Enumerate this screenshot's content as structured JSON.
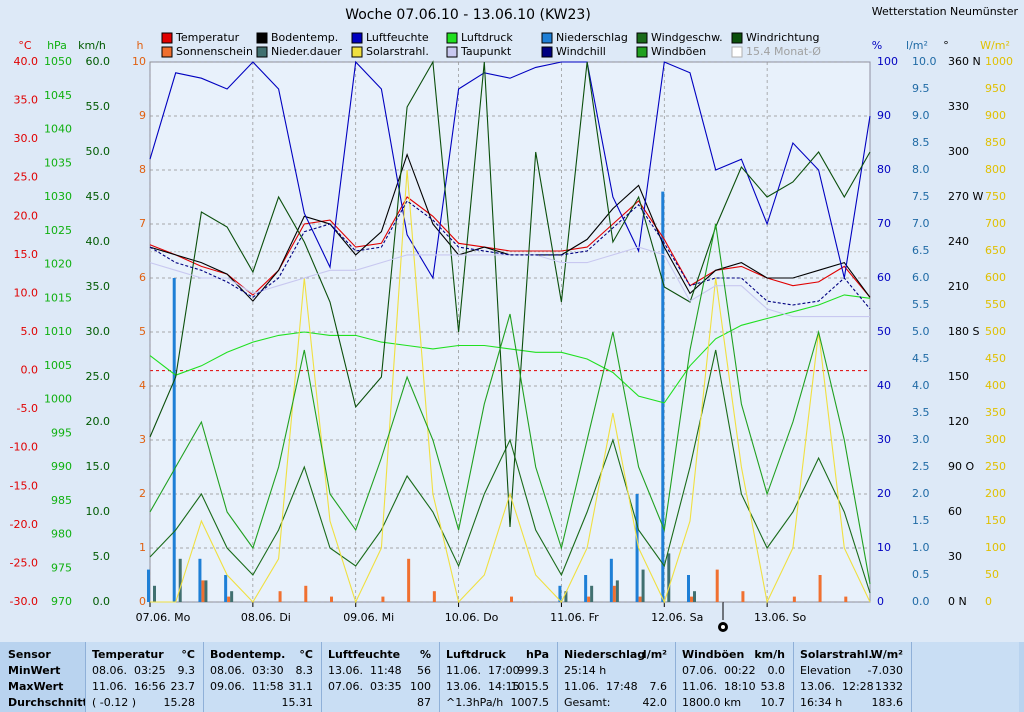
{
  "chart_data": {
    "type": "line",
    "title": "Woche 07.06.10 - 13.06.10 (KW23)",
    "station": "Wetterstation Neumünster",
    "grid": true,
    "xlim": [
      0,
      168
    ],
    "xticks": [
      {
        "value": 0,
        "label": "07.06. Mo"
      },
      {
        "value": 24,
        "label": "08.06. Di"
      },
      {
        "value": 48,
        "label": "09.06. Mi"
      },
      {
        "value": 72,
        "label": "10.06. Do"
      },
      {
        "value": 96,
        "label": "11.06. Fr"
      },
      {
        "value": 120,
        "label": "12.06. Sa"
      },
      {
        "value": 144,
        "label": "13.06. So"
      }
    ],
    "x": [
      0,
      6,
      12,
      18,
      24,
      30,
      36,
      42,
      48,
      54,
      60,
      66,
      72,
      78,
      84,
      90,
      96,
      102,
      108,
      114,
      120,
      126,
      132,
      138,
      144,
      150,
      156,
      162,
      168
    ],
    "axes": [
      {
        "id": "C",
        "unit": "°C",
        "color": "#e00000",
        "lim": [
          -30,
          40
        ],
        "zero_line": true,
        "ticks": [
          {
            "value": -30,
            "label": "-30.0"
          },
          {
            "value": -25,
            "label": "-25.0"
          },
          {
            "value": -20,
            "label": "-20.0"
          },
          {
            "value": -15,
            "label": "-15.0"
          },
          {
            "value": -10,
            "label": "-10.0"
          },
          {
            "value": -5,
            "label": "-5.0"
          },
          {
            "value": 0,
            "label": "0.0"
          },
          {
            "value": 5,
            "label": "5.0"
          },
          {
            "value": 10,
            "label": "10.0"
          },
          {
            "value": 15,
            "label": "15.0"
          },
          {
            "value": 20,
            "label": "20.0"
          },
          {
            "value": 25,
            "label": "25.0"
          },
          {
            "value": 30,
            "label": "30.0"
          },
          {
            "value": 35,
            "label": "35.0"
          },
          {
            "value": 40,
            "label": "40.0"
          }
        ]
      },
      {
        "id": "hPa",
        "unit": "hPa",
        "color": "#10b010",
        "lim": [
          970,
          1050
        ],
        "ticks": [
          970,
          975,
          980,
          985,
          990,
          995,
          1000,
          1005,
          1010,
          1015,
          1020,
          1025,
          1030,
          1035,
          1040,
          1045,
          1050
        ]
      },
      {
        "id": "kmh",
        "unit": "km/h",
        "color": "#005a00",
        "lim": [
          0,
          60
        ],
        "ticks": [
          {
            "value": 0,
            "label": "0.0"
          },
          {
            "value": 5,
            "label": "5.0"
          },
          {
            "value": 10,
            "label": "10.0"
          },
          {
            "value": 15,
            "label": "15.0"
          },
          {
            "value": 20,
            "label": "20.0"
          },
          {
            "value": 25,
            "label": "25.0"
          },
          {
            "value": 30,
            "label": "30.0"
          },
          {
            "value": 35,
            "label": "35.0"
          },
          {
            "value": 40,
            "label": "40.0"
          },
          {
            "value": 45,
            "label": "45.0"
          },
          {
            "value": 50,
            "label": "50.0"
          },
          {
            "value": 55,
            "label": "55.0"
          },
          {
            "value": 60,
            "label": "60.0"
          }
        ]
      },
      {
        "id": "h",
        "unit": "h",
        "color": "#e06010",
        "lim": [
          0,
          10
        ],
        "ticks": [
          0,
          1,
          2,
          3,
          4,
          5,
          6,
          7,
          8,
          9,
          10
        ]
      },
      {
        "id": "pct",
        "unit": "%",
        "color": "#0000c0",
        "lim": [
          0,
          100
        ],
        "ticks": [
          0,
          10,
          20,
          30,
          40,
          50,
          60,
          70,
          80,
          90,
          100
        ]
      },
      {
        "id": "l",
        "unit": "l/m²",
        "color": "#1f6aa5",
        "lim": [
          0,
          10
        ],
        "ticks": [
          {
            "value": 0,
            "label": "0.0"
          },
          {
            "value": 0.5,
            "label": "0.5"
          },
          {
            "value": 1,
            "label": "1.0"
          },
          {
            "value": 1.5,
            "label": "1.5"
          },
          {
            "value": 2,
            "label": "2.0"
          },
          {
            "value": 2.5,
            "label": "2.5"
          },
          {
            "value": 3,
            "label": "3.0"
          },
          {
            "value": 3.5,
            "label": "3.5"
          },
          {
            "value": 4,
            "label": "4.0"
          },
          {
            "value": 4.5,
            "label": "4.5"
          },
          {
            "value": 5,
            "label": "5.0"
          },
          {
            "value": 5.5,
            "label": "5.5"
          },
          {
            "value": 6,
            "label": "6.0"
          },
          {
            "value": 6.5,
            "label": "6.5"
          },
          {
            "value": 7,
            "label": "7.0"
          },
          {
            "value": 7.5,
            "label": "7.5"
          },
          {
            "value": 8,
            "label": "8.0"
          },
          {
            "value": 8.5,
            "label": "8.5"
          },
          {
            "value": 9,
            "label": "9.0"
          },
          {
            "value": 9.5,
            "label": "9.5"
          },
          {
            "value": 10,
            "label": "10.0"
          }
        ]
      },
      {
        "id": "deg",
        "unit": "°",
        "color": "#000000",
        "lim": [
          0,
          360
        ],
        "ticks": [
          {
            "value": 0,
            "label": "0 N"
          },
          30,
          60,
          {
            "value": 90,
            "label": "90 O"
          },
          120,
          150,
          {
            "value": 180,
            "label": "180 S"
          },
          210,
          240,
          {
            "value": 270,
            "label": "270 W"
          },
          300,
          330,
          {
            "value": 360,
            "label": "360 N"
          }
        ]
      },
      {
        "id": "W",
        "unit": "W/m²",
        "color": "#e0c000",
        "lim": [
          0,
          1000
        ],
        "ticks": [
          0,
          50,
          100,
          150,
          200,
          250,
          300,
          350,
          400,
          450,
          500,
          550,
          600,
          650,
          700,
          750,
          800,
          850,
          900,
          950,
          1000
        ]
      }
    ],
    "series": [
      {
        "name": "Temperatur",
        "color": "#e00000",
        "axis": "C",
        "values": [
          16.3,
          15,
          13.5,
          12.5,
          9.8,
          13,
          19,
          19.5,
          16,
          16.5,
          22.5,
          20,
          16.5,
          16,
          15.5,
          15.5,
          15.5,
          16,
          19,
          22,
          17,
          11,
          13,
          13.5,
          12,
          11,
          11.5,
          13.5,
          9.5
        ]
      },
      {
        "name": "Bodentemp.",
        "color": "#000000",
        "axis": "C",
        "values": [
          16,
          15,
          14,
          12.5,
          9,
          13,
          20,
          19,
          15,
          18,
          28,
          19,
          15,
          16,
          15,
          15,
          15,
          17,
          21,
          24,
          16,
          10,
          13,
          14,
          12,
          12,
          13,
          14,
          9.5
        ]
      },
      {
        "name": "Luftfeuchte",
        "color": "#0000c0",
        "axis": "pct",
        "values": [
          82,
          98,
          97,
          95,
          100,
          95,
          72,
          62,
          100,
          95,
          68,
          60,
          95,
          98,
          97,
          99,
          100,
          100,
          75,
          65,
          100,
          98,
          80,
          82,
          70,
          85,
          80,
          60,
          90
        ]
      },
      {
        "name": "Luftdruck",
        "color": "#20e020",
        "axis": "hPa",
        "values": [
          1006.5,
          1003.6,
          1005,
          1007,
          1008.5,
          1009.5,
          1010,
          1009.5,
          1009.5,
          1008.5,
          1008,
          1007.5,
          1008,
          1008,
          1007.5,
          1007,
          1007,
          1006,
          1004,
          1000.5,
          999.5,
          1005,
          1009,
          1011,
          1012,
          1013,
          1014,
          1015.5,
          1015
        ]
      },
      {
        "name": "Niederschlag",
        "color": "#1e7fd6",
        "axis": "l",
        "bars": true,
        "values": [
          0.6,
          6,
          0.8,
          0.5,
          0,
          0,
          0,
          0,
          0,
          0,
          0,
          0,
          0,
          0,
          0,
          0,
          0.3,
          0.5,
          0.8,
          2,
          7.6,
          0.5,
          0,
          0,
          0,
          0,
          0,
          0,
          0
        ]
      },
      {
        "name": "Windgeschw.",
        "color": "#1a6b1a",
        "axis": "kmh",
        "values": [
          5,
          8,
          12,
          6,
          3,
          8,
          15,
          6,
          4,
          8,
          14,
          10,
          4,
          12,
          18,
          8,
          3,
          10,
          18,
          8,
          4,
          15,
          28,
          12,
          6,
          10,
          16,
          10,
          1
        ]
      },
      {
        "name": "Windrichtung",
        "color": "#0b4f0b",
        "axis": "deg",
        "values": [
          110,
          150,
          260,
          250,
          220,
          270,
          240,
          200,
          130,
          150,
          330,
          360,
          180,
          360,
          50,
          300,
          200,
          360,
          240,
          270,
          210,
          200,
          250,
          290,
          270,
          280,
          300,
          270,
          300
        ]
      },
      {
        "name": "Sonnenschein",
        "color": "#f07030",
        "axis": "h",
        "bars": true,
        "values": [
          0,
          0,
          0.4,
          0.1,
          0,
          0.2,
          0.3,
          0.1,
          0,
          0.1,
          0.8,
          0.2,
          0,
          0,
          0.1,
          0,
          0,
          0.1,
          0.3,
          0.1,
          0,
          0.1,
          0.6,
          0.2,
          0,
          0.1,
          0.5,
          0.1,
          0
        ]
      },
      {
        "name": "Nieder.dauer",
        "color": "#407070",
        "axis": "h",
        "bars": true,
        "values": [
          0.3,
          0.8,
          0.4,
          0.2,
          0,
          0,
          0,
          0,
          0,
          0,
          0,
          0,
          0,
          0,
          0,
          0,
          0.2,
          0.3,
          0.4,
          0.6,
          0.9,
          0.2,
          0,
          0,
          0,
          0,
          0,
          0,
          0
        ]
      },
      {
        "name": "Solarstrahl.",
        "color": "#f0e040",
        "axis": "W",
        "values": [
          0,
          0,
          150,
          50,
          0,
          80,
          600,
          150,
          0,
          100,
          800,
          200,
          0,
          50,
          200,
          50,
          0,
          100,
          350,
          100,
          0,
          150,
          600,
          250,
          0,
          100,
          500,
          100,
          0
        ]
      },
      {
        "name": "Taupunkt",
        "color": "#c8c8f0",
        "axis": "C",
        "values": [
          14,
          13,
          12,
          12,
          10,
          11,
          12,
          13,
          13,
          14,
          15,
          15,
          15,
          15,
          15,
          15,
          14,
          14,
          15,
          16,
          15,
          9,
          11,
          11,
          8,
          7,
          7,
          7,
          7
        ]
      },
      {
        "name": "Windchill",
        "color": "#000080",
        "axis": "C",
        "dashed": true,
        "values": [
          16,
          14,
          13,
          11.5,
          9.5,
          12,
          18,
          19,
          15.5,
          16,
          22,
          19.5,
          16,
          15.5,
          15,
          15,
          15,
          15.5,
          18.5,
          21.5,
          16.5,
          11,
          12,
          12,
          9,
          8.5,
          9,
          12,
          8
        ]
      },
      {
        "name": "Windböen",
        "color": "#20a020",
        "axis": "kmh",
        "values": [
          10,
          15,
          20,
          10,
          6,
          15,
          28,
          12,
          8,
          16,
          25,
          18,
          8,
          22,
          32,
          15,
          6,
          18,
          30,
          15,
          8,
          28,
          42,
          22,
          12,
          20,
          30,
          18,
          2
        ]
      }
    ],
    "reference": {
      "name": "15.4 Monat-Ø",
      "value": 15.4,
      "axis": "C",
      "color": "#c0c0c0"
    }
  },
  "table": {
    "row_labels": [
      "Sensor",
      "MinWert",
      "MaxWert",
      "Durchschnitt"
    ],
    "columns": [
      {
        "header": "Temperatur",
        "unit": "°C",
        "rows": [
          [
            "08.06.  03:25",
            "9.3"
          ],
          [
            "11.06.  16:56",
            "23.7"
          ],
          [
            "( -0.12 )",
            "15.28"
          ]
        ]
      },
      {
        "header": "Bodentemp.",
        "unit": "°C",
        "rows": [
          [
            "08.06.  03:30",
            "8.3"
          ],
          [
            "09.06.  11:58",
            "31.1"
          ],
          [
            null,
            "15.31"
          ]
        ]
      },
      {
        "header": "Luftfeuchte",
        "unit": "%",
        "rows": [
          [
            "13.06.  11:48",
            "56"
          ],
          [
            "07.06.  03:35",
            "100"
          ],
          [
            null,
            "87"
          ]
        ]
      },
      {
        "header": "Luftdruck",
        "unit": "hPa",
        "rows": [
          [
            "11.06.  17:00",
            "999.3"
          ],
          [
            "13.06.  14:15",
            "1015.5"
          ],
          [
            "^1.3hPa/h",
            "1007.5"
          ]
        ]
      },
      {
        "header": "Niederschlag",
        "unit": "l/m²",
        "rows": [
          [
            "25:14 h",
            null
          ],
          [
            "11.06.  17:48",
            "7.6"
          ],
          [
            "Gesamt:",
            "42.0"
          ]
        ]
      },
      {
        "header": "Windböen",
        "unit": "km/h",
        "rows": [
          [
            "07.06.  00:22",
            "0.0"
          ],
          [
            "11.06.  18:10",
            "53.8"
          ],
          [
            "1800.0 km",
            "10.7"
          ]
        ]
      },
      {
        "header": "Solarstrahl.",
        "unit": "W/m²",
        "rows": [
          [
            "Elevation",
            "-7.030"
          ],
          [
            "13.06.  12:28",
            "1332"
          ],
          [
            "16:34 h",
            "183.6"
          ]
        ]
      }
    ]
  }
}
